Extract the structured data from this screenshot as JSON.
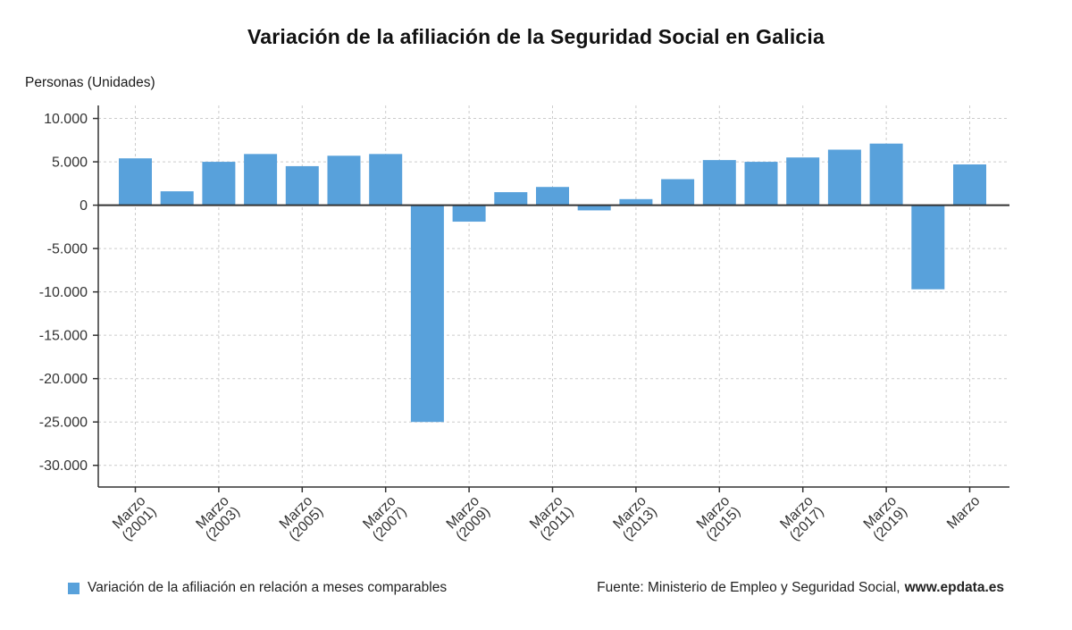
{
  "title": "Variación de la afiliación de la Seguridad Social en Galicia",
  "y_axis_title": "Personas (Unidades)",
  "legend": {
    "label": "Variación de la afiliación en relación a meses comparables",
    "color": "#58a1db"
  },
  "source": {
    "prefix": "Fuente: Ministerio de Empleo y Seguridad Social,",
    "brand": "www.epdata.es"
  },
  "chart_data": {
    "type": "bar",
    "title": "Variación de la afiliación de la Seguridad Social en Galicia",
    "ylabel": "Personas (Unidades)",
    "series_name": "Variación de la afiliación en relación a meses comparables",
    "values": [
      5400,
      1600,
      5000,
      5900,
      4500,
      5700,
      5900,
      -25000,
      -1900,
      1500,
      2100,
      -600,
      700,
      3000,
      5200,
      5000,
      5500,
      6400,
      7100,
      -9700,
      4700
    ],
    "tick_labels": [
      [
        "Marzo",
        "(2001)"
      ],
      null,
      [
        "Marzo",
        "(2003)"
      ],
      null,
      [
        "Marzo",
        "(2005)"
      ],
      null,
      [
        "Marzo",
        "(2007)"
      ],
      null,
      [
        "Marzo",
        "(2009)"
      ],
      null,
      [
        "Marzo",
        "(2011)"
      ],
      null,
      [
        "Marzo",
        "(2013)"
      ],
      null,
      [
        "Marzo",
        "(2015)"
      ],
      null,
      [
        "Marzo",
        "(2017)"
      ],
      null,
      [
        "Marzo",
        "(2019)"
      ],
      null,
      [
        "Marzo"
      ]
    ],
    "y_ticks": [
      10000,
      5000,
      0,
      -5000,
      -10000,
      -15000,
      -20000,
      -25000,
      -30000
    ],
    "y_tick_labels": [
      "10.000",
      "5.000",
      "0",
      "-5.000",
      "-10.000",
      "-15.000",
      "-20.000",
      "-25.000",
      "-30.000"
    ],
    "ylim": [
      -32500,
      11500
    ],
    "bar_color": "#58a1db",
    "grid": true,
    "grid_color": "#cccccc",
    "axis_color": "#333333",
    "text_color": "#333333",
    "legend_position": "bottom-left"
  }
}
